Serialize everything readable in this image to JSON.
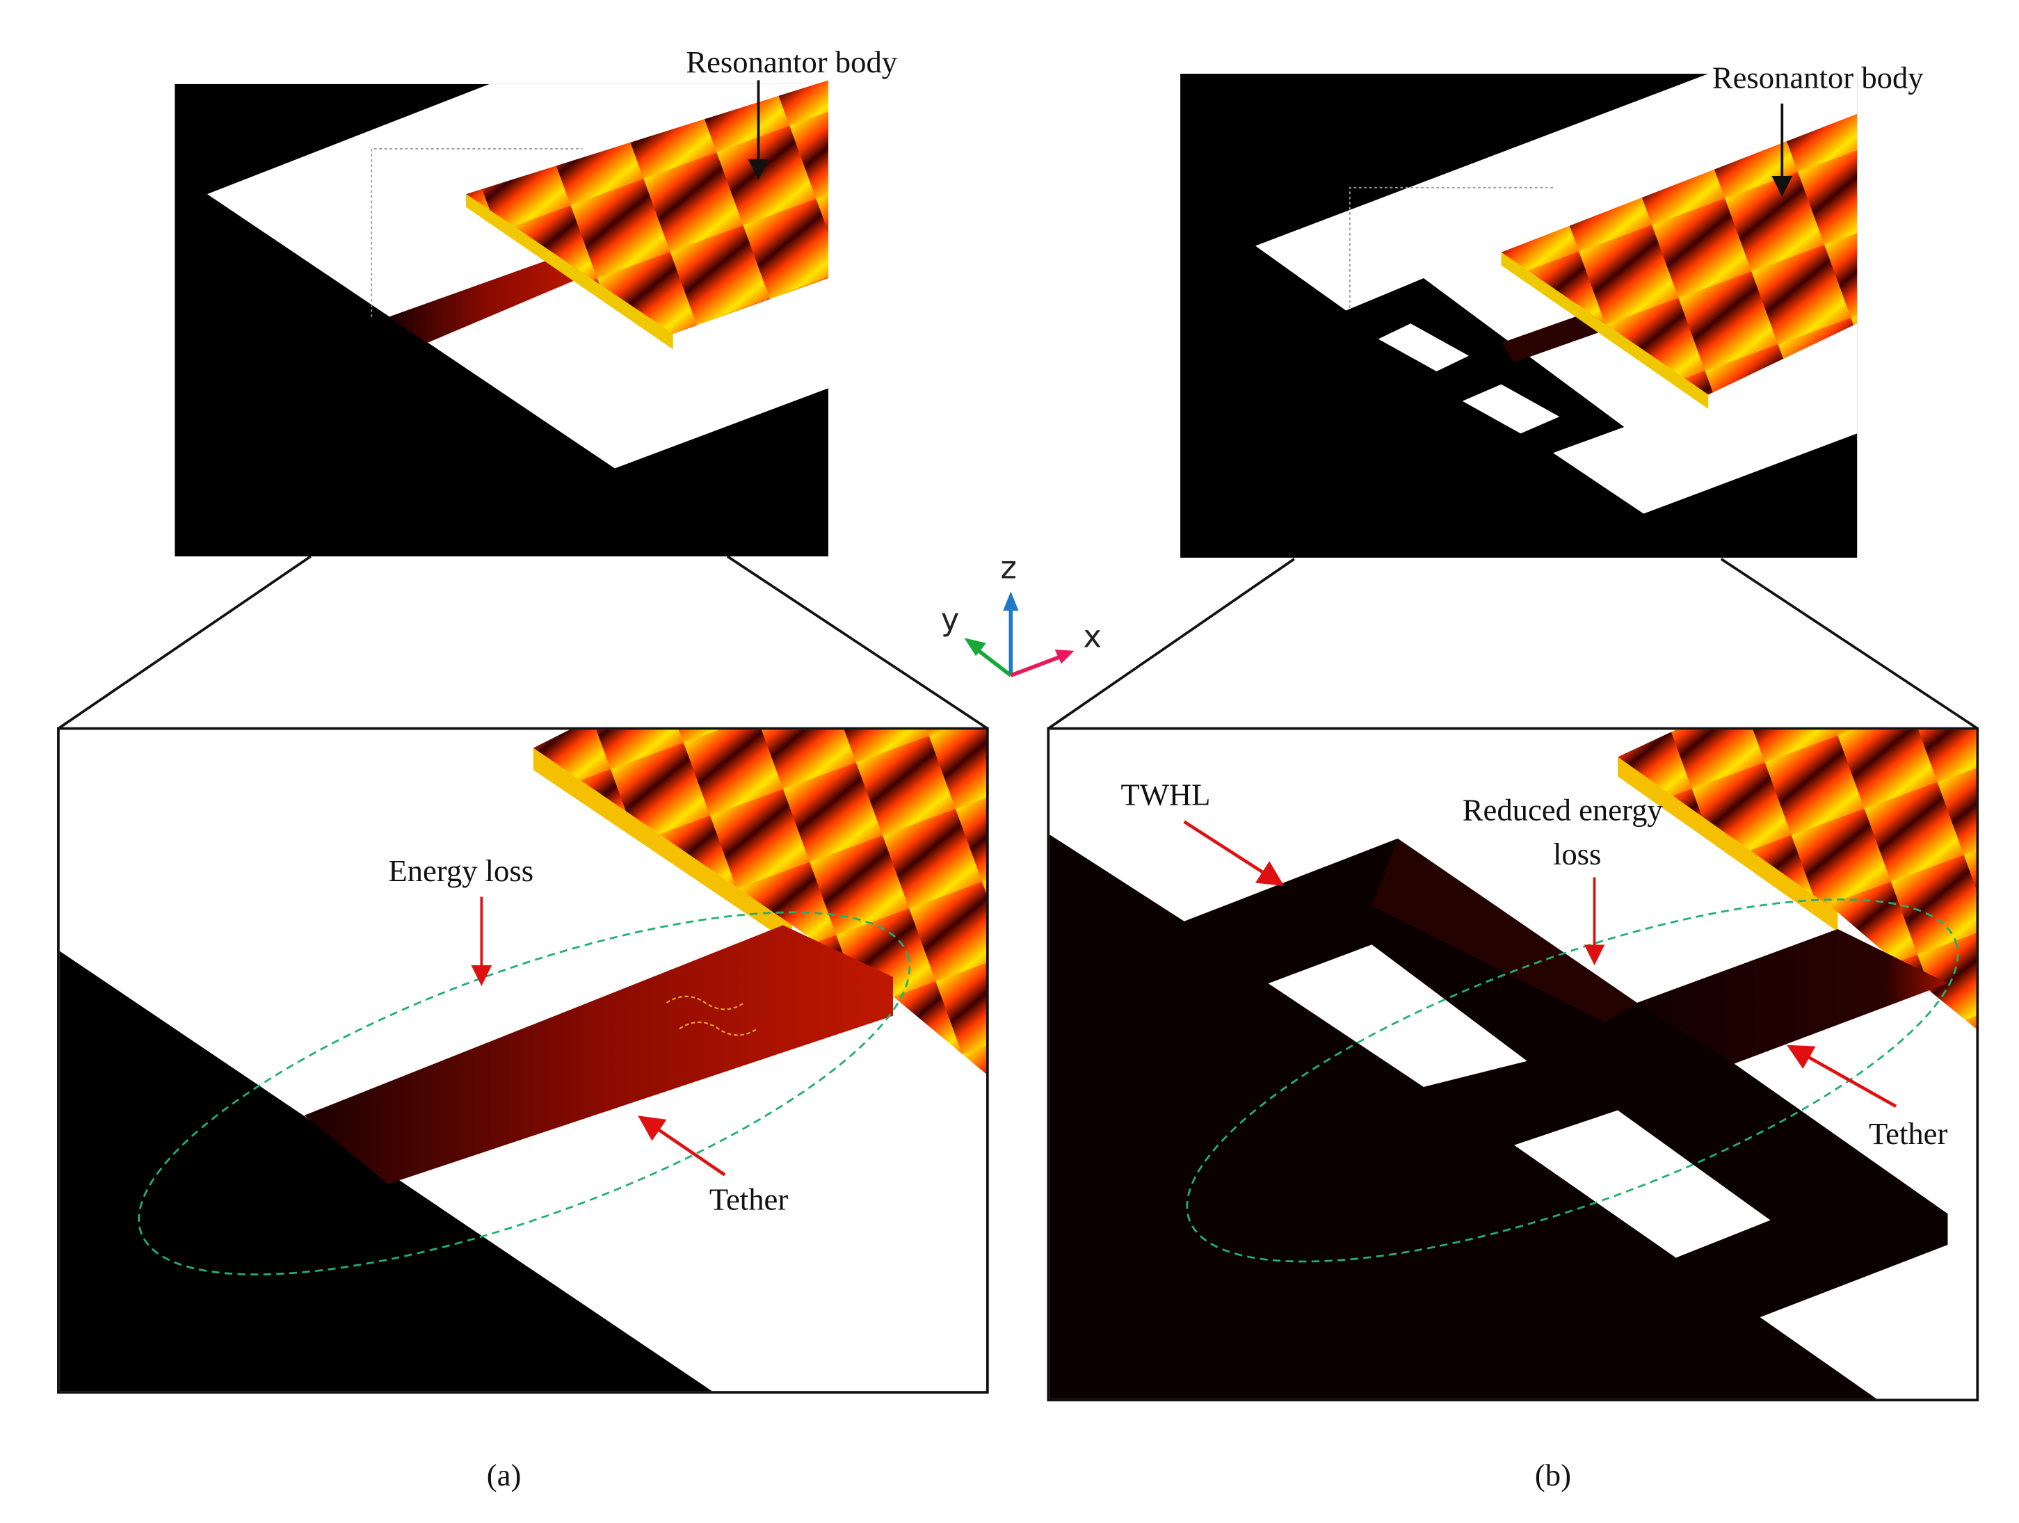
{
  "panel_a": {
    "top_label": "Resonantor body",
    "energy_label": "Energy loss",
    "tether_label": "Tether",
    "caption": "(a)"
  },
  "panel_b": {
    "top_label": "Resonantor body",
    "twhl_label": "TWHL",
    "reduced_label_line1": "Reduced energy",
    "reduced_label_line2": "loss",
    "tether_label": "Tether",
    "caption": "(b)"
  },
  "axes": {
    "x": "x",
    "y": "y",
    "z": "z",
    "colors": {
      "x": "#e8195a",
      "y": "#17a838",
      "z": "#1f78c8"
    }
  },
  "colors": {
    "annotation_arrow": "#e01010",
    "ellipse": "#20b070",
    "heat_hot": "#ffee00",
    "heat_mid": "#e02000",
    "heat_cold": "#120000"
  }
}
